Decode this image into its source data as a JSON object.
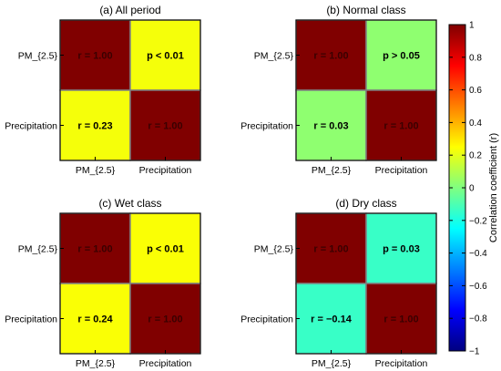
{
  "chart_data": [
    {
      "type": "heatmap",
      "title": "(a) All period",
      "row_labels": [
        "PM_{2.5}",
        "Precipitation"
      ],
      "col_labels": [
        "PM_{2.5}",
        "Precipitation"
      ],
      "values": [
        [
          1.0,
          0.23
        ],
        [
          0.23,
          1.0
        ]
      ],
      "cell_text": [
        [
          "r = 1.00",
          "p < 0.01"
        ],
        [
          "r = 0.23",
          "r = 1.00"
        ]
      ]
    },
    {
      "type": "heatmap",
      "title": "(b) Normal class",
      "row_labels": [
        "PM_{2.5}",
        "Precipitation"
      ],
      "col_labels": [
        "PM_{2.5}",
        "Precipitation"
      ],
      "values": [
        [
          1.0,
          0.03
        ],
        [
          0.03,
          1.0
        ]
      ],
      "cell_text": [
        [
          "r = 1.00",
          "p > 0.05"
        ],
        [
          "r = 0.03",
          "r = 1.00"
        ]
      ]
    },
    {
      "type": "heatmap",
      "title": "(c) Wet class",
      "row_labels": [
        "PM_{2.5}",
        "Precipitation"
      ],
      "col_labels": [
        "PM_{2.5}",
        "Precipitation"
      ],
      "values": [
        [
          1.0,
          0.24
        ],
        [
          0.24,
          1.0
        ]
      ],
      "cell_text": [
        [
          "r = 1.00",
          "p < 0.01"
        ],
        [
          "r = 0.24",
          "r = 1.00"
        ]
      ]
    },
    {
      "type": "heatmap",
      "title": "(d) Dry class",
      "row_labels": [
        "PM_{2.5}",
        "Precipitation"
      ],
      "col_labels": [
        "PM_{2.5}",
        "Precipitation"
      ],
      "values": [
        [
          1.0,
          -0.14
        ],
        [
          -0.14,
          1.0
        ]
      ],
      "cell_text": [
        [
          "r = 1.00",
          "p = 0.03"
        ],
        [
          "r = −0.14",
          "r = 1.00"
        ]
      ]
    }
  ],
  "colorbar": {
    "label": "Correlation coefficient (r)",
    "range": [
      -1,
      1
    ],
    "ticks": [
      "1",
      "0.8",
      "0.6",
      "0.4",
      "0.2",
      "0",
      "−0.2",
      "−0.4",
      "−0.6",
      "−0.8",
      "−1"
    ],
    "colormap": "jet"
  }
}
